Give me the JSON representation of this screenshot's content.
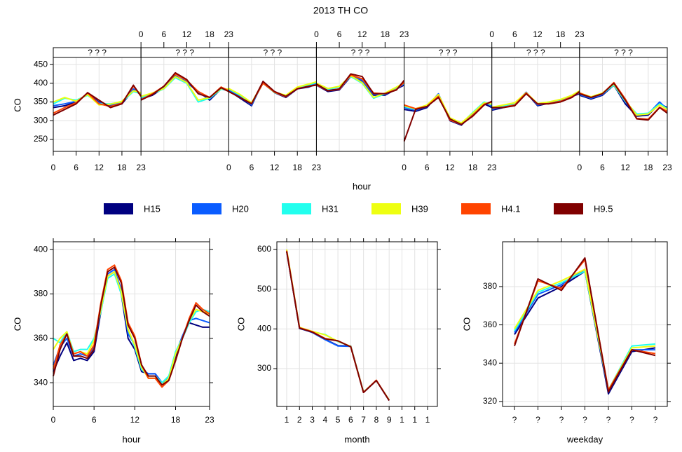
{
  "chart_data": [
    {
      "type": "line",
      "title": "2013 TH CO",
      "y_label": "CO",
      "x_label": "hour",
      "strips": [
        "? ? ?",
        "? ? ?",
        "? ? ?",
        "? ? ?",
        "? ? ?",
        "? ? ?",
        "? ? ?"
      ],
      "x": [
        0,
        3,
        6,
        9,
        12,
        15,
        18,
        21,
        23
      ],
      "xlim": [
        0,
        23
      ],
      "xticks": [
        0,
        6,
        12,
        18,
        23
      ],
      "ylim": [
        218,
        469
      ],
      "yticks": [
        250,
        300,
        350,
        400,
        450
      ],
      "grid": true,
      "series": [
        {
          "name": "H15",
          "color": "#000080",
          "values": [
            [
              335,
              340,
              350,
              372,
              350,
              340,
              345,
              382,
              370
            ],
            [
              358,
              368,
              388,
              420,
              402,
              378,
              355,
              385,
              380
            ],
            [
              380,
              360,
              340,
              405,
              375,
              362,
              385,
              390,
              398
            ],
            [
              395,
              378,
              382,
              418,
              405,
              368,
              368,
              385,
              395
            ],
            [
              330,
              325,
              335,
              370,
              300,
              288,
              318,
              345,
              335
            ],
            [
              328,
              335,
              342,
              375,
              340,
              347,
              352,
              365,
              372
            ],
            [
              368,
              358,
              368,
              395,
              345,
              312,
              315,
              345,
              335
            ]
          ]
        },
        {
          "name": "H20",
          "color": "#0a5cff",
          "values": [
            [
              340,
              345,
              352,
              370,
              348,
              342,
              348,
              385,
              372
            ],
            [
              360,
              372,
              390,
              418,
              405,
              375,
              358,
              386,
              382
            ],
            [
              382,
              365,
              342,
              402,
              376,
              364,
              386,
              392,
              400
            ],
            [
              396,
              382,
              384,
              420,
              408,
              370,
              370,
              386,
              398
            ],
            [
              335,
              328,
              338,
              372,
              302,
              290,
              320,
              348,
              340
            ],
            [
              330,
              338,
              345,
              376,
              342,
              348,
              354,
              366,
              375
            ],
            [
              370,
              360,
              370,
              396,
              350,
              315,
              318,
              350,
              330
            ]
          ]
        },
        {
          "name": "H31",
          "color": "#22ffee",
          "values": [
            [
              345,
              360,
              355,
              368,
              345,
              345,
              350,
              378,
              372
            ],
            [
              362,
              372,
              385,
              415,
              400,
              350,
              360,
              384,
              382
            ],
            [
              385,
              368,
              345,
              400,
              375,
              366,
              388,
              396,
              402
            ],
            [
              398,
              384,
              390,
              418,
              400,
              360,
              372,
              388,
              400
            ],
            [
              338,
              330,
              340,
              368,
              305,
              292,
              322,
              350,
              342
            ],
            [
              335,
              340,
              346,
              374,
              345,
              350,
              356,
              368,
              378
            ],
            [
              372,
              362,
              372,
              395,
              352,
              318,
              320,
              345,
              332
            ]
          ]
        },
        {
          "name": "H39",
          "color": "#eeff11",
          "values": [
            [
              350,
              362,
              352,
              370,
              342,
              344,
              352,
              380,
              375
            ],
            [
              365,
              374,
              386,
              418,
              402,
              355,
              362,
              386,
              384
            ],
            [
              386,
              370,
              348,
              402,
              376,
              368,
              390,
              398,
              404
            ],
            [
              400,
              386,
              392,
              420,
              402,
              362,
              374,
              390,
              402
            ],
            [
              340,
              332,
              342,
              370,
              308,
              294,
              320,
              348,
              344
            ],
            [
              336,
              342,
              348,
              375,
              346,
              350,
              357,
              368,
              380
            ],
            [
              374,
              364,
              374,
              398,
              354,
              315,
              318,
              342,
              330
            ]
          ]
        },
        {
          "name": "H4.1",
          "color": "#ff4400",
          "values": [
            [
              320,
              335,
              348,
              374,
              345,
              338,
              347,
              392,
              368
            ],
            [
              356,
              372,
              392,
              425,
              408,
              378,
              362,
              390,
              380
            ],
            [
              378,
              362,
              346,
              400,
              376,
              364,
              386,
              392,
              396
            ],
            [
              396,
              380,
              384,
              422,
              412,
              374,
              372,
              384,
              402
            ],
            [
              342,
              332,
              338,
              365,
              302,
              290,
              314,
              344,
              350
            ],
            [
              334,
              336,
              342,
              374,
              344,
              346,
              352,
              364,
              376
            ],
            [
              374,
              362,
              372,
              402,
              358,
              306,
              304,
              336,
              325
            ]
          ]
        },
        {
          "name": "H9.5",
          "color": "#800000",
          "values": [
            [
              315,
              330,
              345,
              375,
              355,
              335,
              345,
              395,
              365
            ],
            [
              355,
              370,
              392,
              428,
              410,
              372,
              362,
              388,
              378
            ],
            [
              378,
              362,
              345,
              405,
              378,
              365,
              385,
              392,
              395
            ],
            [
              398,
              380,
              385,
              425,
              418,
              372,
              372,
              382,
              408
            ],
            [
              245,
              330,
              338,
              362,
              305,
              290,
              312,
              342,
              352
            ],
            [
              335,
              335,
              340,
              372,
              345,
              345,
              350,
              362,
              378
            ],
            [
              372,
              362,
              372,
              400,
              355,
              305,
              302,
              335,
              320
            ]
          ]
        }
      ]
    },
    {
      "type": "line",
      "y_label": "CO",
      "x_label": "hour",
      "x": [
        0,
        1,
        2,
        3,
        4,
        5,
        6,
        7,
        8,
        9,
        10,
        11,
        12,
        13,
        14,
        15,
        16,
        17,
        18,
        19,
        20,
        21,
        22,
        23
      ],
      "xlim": [
        0,
        23
      ],
      "xticks": [
        0,
        6,
        12,
        18,
        23
      ],
      "ylim": [
        329.3,
        403.5
      ],
      "yticks": [
        340,
        360,
        380,
        400
      ],
      "grid": true,
      "series": [
        {
          "color": "#000080",
          "values": [
            345,
            352,
            358,
            350,
            351,
            350,
            354,
            372,
            388,
            390,
            380,
            360,
            355,
            345,
            344,
            344,
            340,
            342,
            352,
            360,
            367,
            366,
            365,
            365
          ]
        },
        {
          "color": "#0a5cff",
          "values": [
            348,
            356,
            360,
            352,
            353,
            352,
            356,
            373,
            389,
            391,
            382,
            362,
            357,
            346,
            344,
            344,
            340,
            342,
            353,
            361,
            368,
            369,
            368,
            367
          ]
        },
        {
          "color": "#22ffee",
          "values": [
            360,
            358,
            363,
            354,
            355,
            355,
            360,
            372,
            387,
            389,
            380,
            364,
            356,
            346,
            343,
            343,
            340,
            343,
            354,
            360,
            367,
            372,
            373,
            372
          ]
        },
        {
          "color": "#eeff11",
          "values": [
            355,
            360,
            363,
            353,
            354,
            353,
            359,
            373,
            388,
            390,
            381,
            364,
            357,
            347,
            342,
            342,
            339,
            342,
            353,
            360,
            368,
            373,
            372,
            371
          ]
        },
        {
          "color": "#ff4400",
          "values": [
            346,
            357,
            362,
            353,
            354,
            352,
            357,
            376,
            391,
            393,
            386,
            367,
            361,
            348,
            342,
            342,
            338,
            341,
            350,
            360,
            369,
            376,
            373,
            371
          ]
        },
        {
          "color": "#800000",
          "values": [
            343,
            355,
            362,
            352,
            352,
            351,
            355,
            375,
            390,
            392,
            385,
            366,
            360,
            348,
            343,
            343,
            339,
            341,
            350,
            360,
            368,
            375,
            372,
            370
          ]
        }
      ]
    },
    {
      "type": "line",
      "y_label": "CO",
      "x_label": "month",
      "categories": [
        "1",
        "2",
        "3",
        "4",
        "5",
        "6",
        "7",
        "8",
        "9",
        "1",
        "1",
        "1"
      ],
      "ylim": [
        204.8,
        619.4
      ],
      "yticks": [
        300,
        400,
        500,
        600
      ],
      "grid": true,
      "series": [
        {
          "color": "#000080",
          "values": [
            595,
            401,
            392,
            374,
            358,
            357,
            240,
            270,
            220,
            null,
            null,
            null
          ]
        },
        {
          "color": "#0a5cff",
          "values": [
            596,
            402,
            391,
            373,
            357,
            356,
            240,
            270,
            220,
            null,
            null,
            null
          ]
        },
        {
          "color": "#22ffee",
          "values": [
            598,
            403,
            393,
            386,
            368,
            356,
            241,
            270,
            221,
            null,
            null,
            null
          ]
        },
        {
          "color": "#eeff11",
          "values": [
            600,
            404,
            394,
            385,
            369,
            356,
            241,
            270,
            221,
            null,
            null,
            null
          ]
        },
        {
          "color": "#ff4400",
          "values": [
            597,
            403,
            393,
            376,
            370,
            355,
            240,
            271,
            220,
            null,
            null,
            null
          ]
        },
        {
          "color": "#800000",
          "values": [
            595,
            402,
            392,
            375,
            370,
            355,
            240,
            270,
            220,
            null,
            null,
            null
          ]
        }
      ]
    },
    {
      "type": "line",
      "y_label": "CO",
      "x_label": "weekday",
      "categories": [
        "?",
        "?",
        "?",
        "?",
        "?",
        "?",
        "?"
      ],
      "ylim": [
        317.4,
        403.4
      ],
      "yticks": [
        320,
        340,
        360,
        380
      ],
      "grid": true,
      "series": [
        {
          "color": "#000080",
          "values": [
            355,
            374,
            380,
            388,
            324,
            346,
            348
          ]
        },
        {
          "color": "#0a5cff",
          "values": [
            356,
            376,
            381,
            389,
            325,
            347,
            347
          ]
        },
        {
          "color": "#22ffee",
          "values": [
            357,
            377,
            382,
            388,
            326,
            349,
            350
          ]
        },
        {
          "color": "#eeff11",
          "values": [
            358,
            378,
            383,
            389,
            326,
            348,
            349
          ]
        },
        {
          "color": "#ff4400",
          "values": [
            350,
            383,
            379,
            394,
            326,
            347,
            345
          ]
        },
        {
          "color": "#800000",
          "values": [
            349,
            384,
            378,
            395,
            325,
            347,
            344
          ]
        }
      ]
    }
  ]
}
